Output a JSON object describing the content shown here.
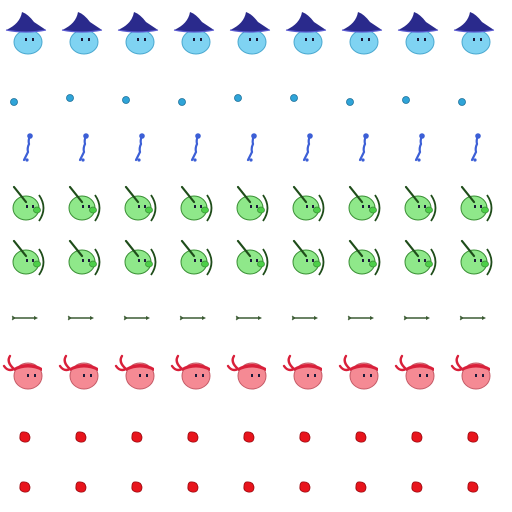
{
  "sprite_sheet": {
    "columns": 9,
    "rows": [
      {
        "sprite": "wizard-slime-icon",
        "frames": 9
      },
      {
        "sprite": "blue-orb-projectile-icon",
        "frames": 9
      },
      {
        "sprite": "blue-magic-bolt-icon",
        "frames": 9
      },
      {
        "sprite": "archer-slime-icon",
        "frames": 9
      },
      {
        "sprite": "archer-slime-icon",
        "frames": 9
      },
      {
        "sprite": "arrow-projectile-icon",
        "frames": 9
      },
      {
        "sprite": "bandana-slime-icon",
        "frames": 9
      },
      {
        "sprite": "red-fireball-icon",
        "frames": 9
      },
      {
        "sprite": "red-fireball-icon",
        "frames": 9
      }
    ],
    "colors": {
      "wizard_body": "#7fd3f2",
      "wizard_outline": "#4aa8cf",
      "wizard_hat": "#2a2a8c",
      "orb": "#2fa4d8",
      "bolt": "#3c5fd6",
      "archer_body": "#8fe88a",
      "archer_outline": "#3a8f35",
      "bow": "#1f4d1a",
      "arrow": "#3a5a32",
      "bandana_body": "#f58a94",
      "bandana": "#d9203a",
      "fireball": "#e8141c",
      "eye": "#1a1a3a"
    }
  }
}
